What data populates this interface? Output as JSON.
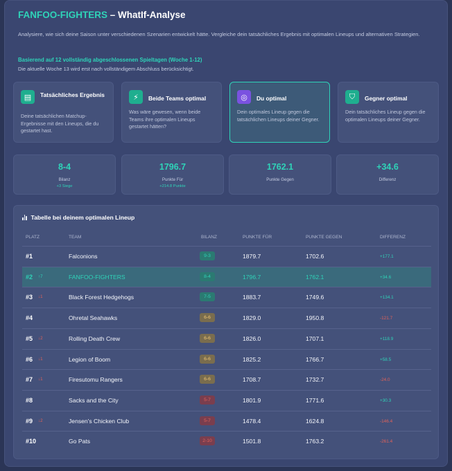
{
  "header": {
    "title_team": "FANFOO-FIGHTERS",
    "title_rest": " – WhatIf-Analyse",
    "intro": "Analysiere, wie sich deine Saison unter verschiedenen Szenarien entwickelt hätte. Vergleiche dein tatsächliches Ergebnis mit optimalen Lineups und alternativen Strategien.",
    "based_on": "Basierend auf 12 vollständig abgeschlossenen Spieltagen (Woche 1-12)",
    "note": "Die aktuelle Woche 13 wird erst nach vollständigem Abschluss berücksichtigt."
  },
  "scenarios": [
    {
      "title": "Tatsächliches Ergebnis",
      "desc": "Deine tatsächlichen Matchup-Ergebnisse mit den Lineups, die du gestartet hast.",
      "icon": "clipboard-icon",
      "glyph": "▤",
      "color": "#1fae8f"
    },
    {
      "title": "Beide Teams optimal",
      "desc": "Was wäre gewesen, wenn beide Teams ihre optimalen Lineups gestartet hätten?",
      "icon": "lightning-icon",
      "glyph": "⚡",
      "color": "#1fae8f"
    },
    {
      "title": "Du optimal",
      "desc": "Dein optimales Lineup gegen die tatsächlichen Lineups deiner Gegner.",
      "icon": "target-icon",
      "glyph": "◎",
      "color": "#7a52e0"
    },
    {
      "title": "Gegner optimal",
      "desc": "Dein tatsächliches Lineup gegen die optimalen Lineups deiner Gegner.",
      "icon": "shield-icon",
      "glyph": "⛉",
      "color": "#1fae8f"
    }
  ],
  "stats": [
    {
      "value": "8-4",
      "label": "Bilanz",
      "sub": "+3 Siege"
    },
    {
      "value": "1796.7",
      "label": "Punkte Für",
      "sub": "+214.8 Punkte"
    },
    {
      "value": "1762.1",
      "label": "Punkte Gegen",
      "sub": ""
    },
    {
      "value": "+34.6",
      "label": "Differenz",
      "sub": ""
    }
  ],
  "table": {
    "title": "Tabelle bei deinem optimalen Lineup",
    "columns": {
      "place": "PLATZ",
      "team": "TEAM",
      "record": "BILANZ",
      "pf": "PUNKTE FÜR",
      "pa": "PUNKTE GEGEN",
      "diff": "DIFFERENZ"
    },
    "rows": [
      {
        "place": "#1",
        "move": "",
        "team": "Falconions",
        "record": "9-3",
        "pf": "1879.7",
        "pa": "1702.6",
        "diff": "+177.1"
      },
      {
        "place": "#2",
        "move": "↑7",
        "team": "FANFOO-FIGHTERS",
        "record": "8-4",
        "pf": "1796.7",
        "pa": "1762.1",
        "diff": "+34.6"
      },
      {
        "place": "#3",
        "move": "↓1",
        "team": "Black Forest Hedgehogs",
        "record": "7-5",
        "pf": "1883.7",
        "pa": "1749.6",
        "diff": "+134.1"
      },
      {
        "place": "#4",
        "move": "",
        "team": "Ohretal Seahawks",
        "record": "6-6",
        "pf": "1829.0",
        "pa": "1950.8",
        "diff": "-121.7"
      },
      {
        "place": "#5",
        "move": "↓2",
        "team": "Rolling Death Crew",
        "record": "6-6",
        "pf": "1826.0",
        "pa": "1707.1",
        "diff": "+118.9"
      },
      {
        "place": "#6",
        "move": "↓1",
        "team": "Legion of Boom",
        "record": "6-6",
        "pf": "1825.2",
        "pa": "1766.7",
        "diff": "+58.5"
      },
      {
        "place": "#7",
        "move": "↓1",
        "team": "Firesutomu Rangers",
        "record": "6-6",
        "pf": "1708.7",
        "pa": "1732.7",
        "diff": "-24.0"
      },
      {
        "place": "#8",
        "move": "",
        "team": "Sacks and the City",
        "record": "5-7",
        "pf": "1801.9",
        "pa": "1771.6",
        "diff": "+30.3"
      },
      {
        "place": "#9",
        "move": "↓2",
        "team": "Jensen's Chicken Club",
        "record": "5-7",
        "pf": "1478.4",
        "pa": "1624.8",
        "diff": "-146.4"
      },
      {
        "place": "#10",
        "move": "",
        "team": "Go Pats",
        "record": "2-10",
        "pf": "1501.8",
        "pa": "1763.2",
        "diff": "-261.4"
      }
    ]
  },
  "colors": {
    "accent": "#2fd3b8",
    "positive": "#2fd3b8",
    "negative": "#e0625a",
    "win_badge_bg": "#2b7a72",
    "even_badge_bg": "#7a6d4e",
    "loss_badge_bg": "#7a3e4e"
  }
}
